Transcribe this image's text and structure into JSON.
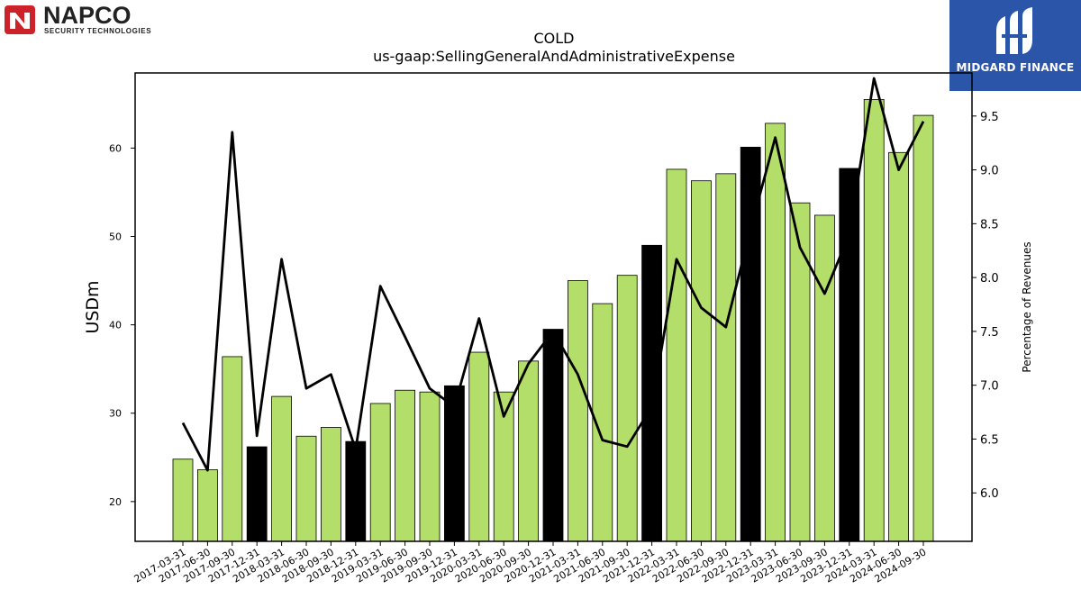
{
  "logos": {
    "left": {
      "name": "NAPCO",
      "tagline": "SECURITY TECHNOLOGIES",
      "color": "#cc2229"
    },
    "right": {
      "name": "MIDGARD FINANCE",
      "color": "#2b55a8"
    }
  },
  "chart_data": {
    "type": "bar",
    "title": "COLD",
    "subtitle": "us-gaap:SellingGeneralAndAdministrativeExpense",
    "ylabel": "USDm",
    "y2label": "Percentage of Revenues",
    "ylim": [
      15.5,
      68.5
    ],
    "y2lim": [
      5.55,
      9.9
    ],
    "yticks": [
      20,
      30,
      40,
      50,
      60
    ],
    "y2ticks": [
      6.0,
      6.5,
      7.0,
      7.5,
      8.0,
      8.5,
      9.0,
      9.5
    ],
    "categories": [
      "2017-03-31",
      "2017-06-30",
      "2017-09-30",
      "2017-12-31",
      "2018-03-31",
      "2018-06-30",
      "2018-09-30",
      "2018-12-31",
      "2019-03-31",
      "2019-06-30",
      "2019-09-30",
      "2019-12-31",
      "2020-03-31",
      "2020-06-30",
      "2020-09-30",
      "2020-12-31",
      "2021-03-31",
      "2021-06-30",
      "2021-09-30",
      "2021-12-31",
      "2022-03-31",
      "2022-06-30",
      "2022-09-30",
      "2022-12-31",
      "2023-03-31",
      "2023-06-30",
      "2023-09-30",
      "2023-12-31",
      "2024-03-31",
      "2024-06-30",
      "2024-09-30"
    ],
    "series": [
      {
        "type": "bar",
        "values": [
          24.8,
          23.6,
          36.4,
          26.2,
          31.9,
          27.4,
          28.4,
          26.8,
          31.1,
          32.6,
          32.4,
          33.1,
          36.9,
          32.4,
          35.9,
          39.5,
          45.0,
          42.4,
          45.6,
          49.0,
          57.6,
          56.3,
          57.1,
          60.1,
          62.8,
          53.8,
          52.4,
          57.7,
          65.5,
          59.5,
          63.7
        ]
      },
      {
        "type": "line",
        "axis": "right",
        "values": [
          6.65,
          6.21,
          9.35,
          6.53,
          8.17,
          6.97,
          7.1,
          6.4,
          7.92,
          7.45,
          6.97,
          6.8,
          7.62,
          6.71,
          7.2,
          7.5,
          7.1,
          6.49,
          6.43,
          6.8,
          8.17,
          7.72,
          7.54,
          8.45,
          9.3,
          8.28,
          7.85,
          8.4,
          9.85,
          9.0,
          9.45
        ]
      }
    ],
    "quarter_end_marks": [
      "2017-12-31",
      "2018-12-31",
      "2019-12-31",
      "2020-12-31",
      "2021-12-31",
      "2022-12-31",
      "2023-12-31"
    ],
    "colors": {
      "bar": "#b3de69",
      "bar_year_end": "#000000",
      "line": "#000000"
    },
    "grid": false
  }
}
